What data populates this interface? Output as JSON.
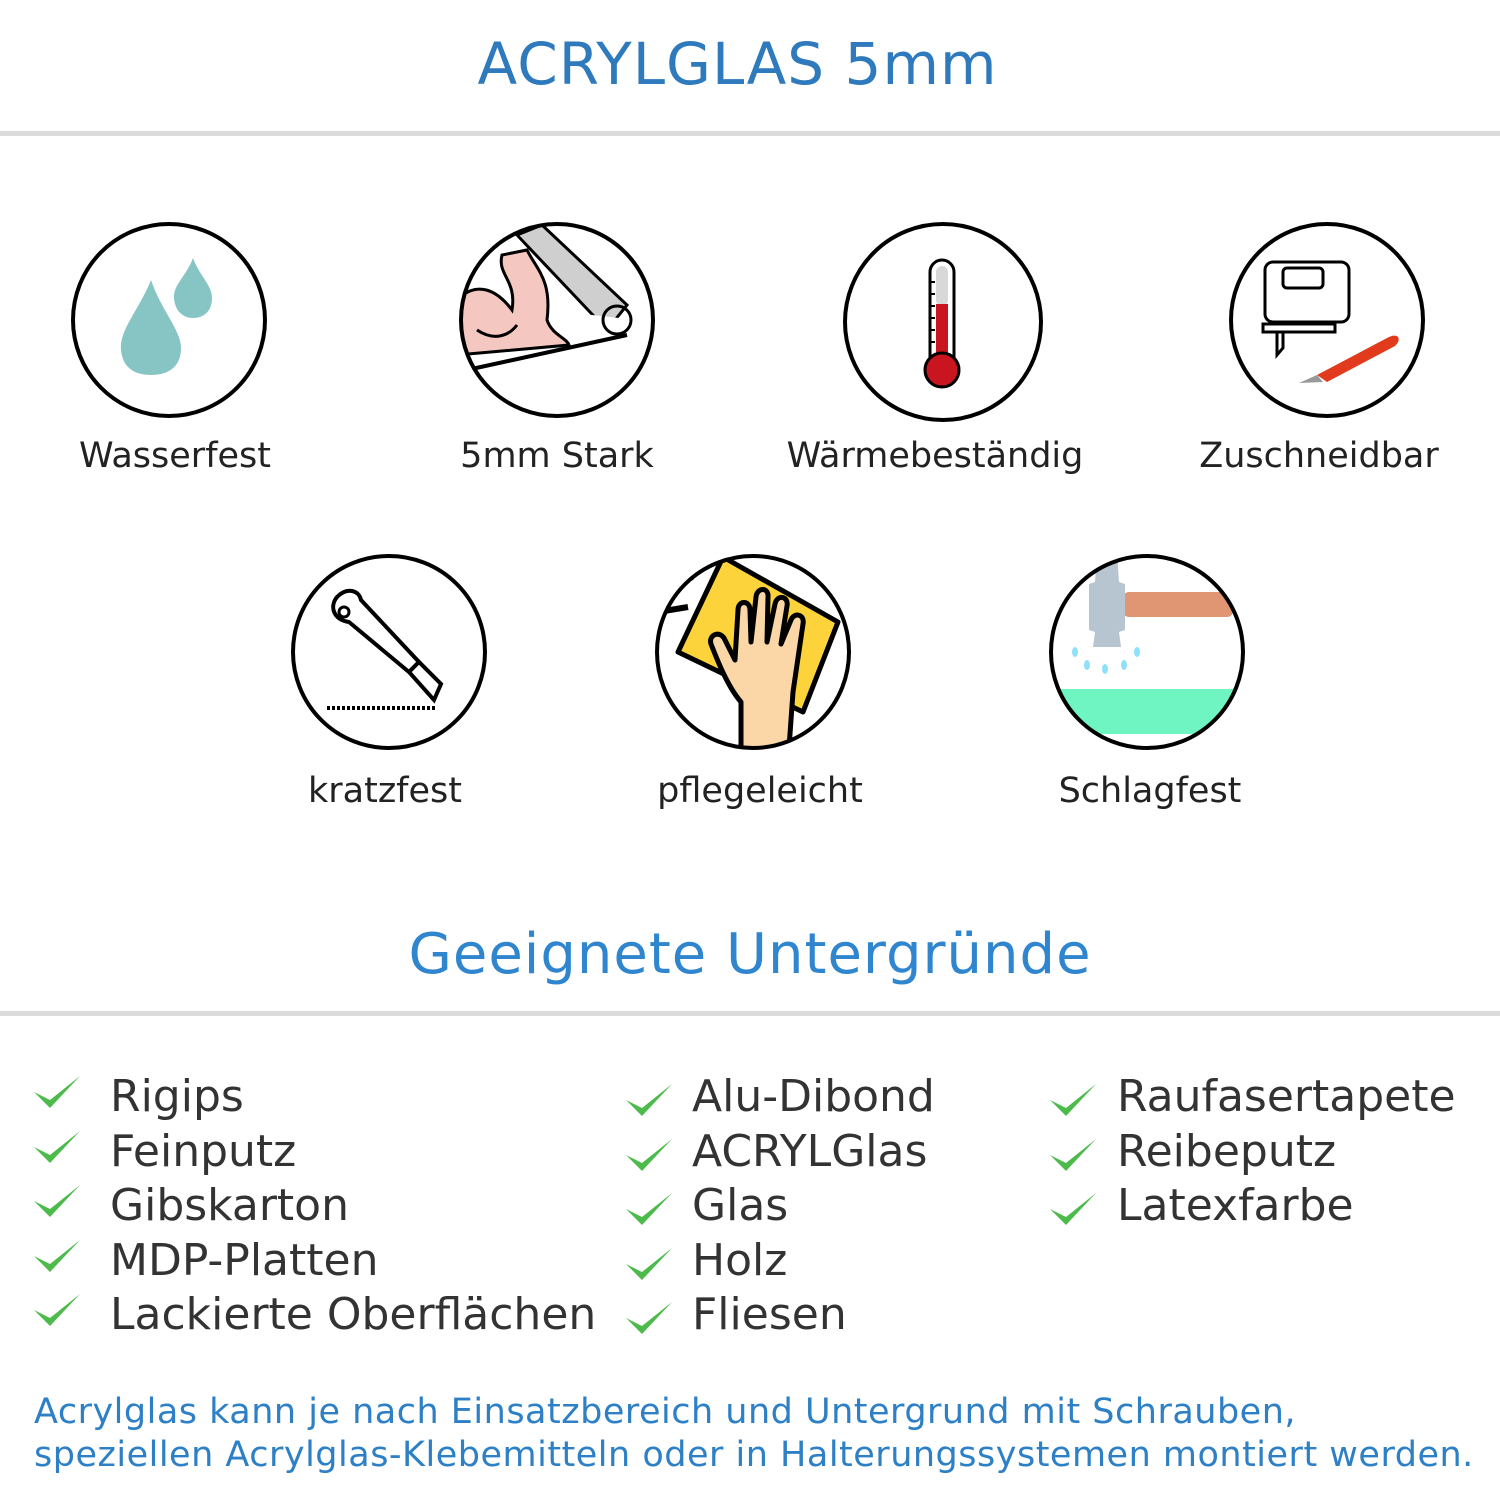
{
  "header": {
    "title": "ACRYLGLAS 5mm"
  },
  "features": [
    {
      "label": "Wasserfest",
      "icon": "water-drops-icon"
    },
    {
      "label": "5mm Stark",
      "icon": "strong-arm-icon"
    },
    {
      "label": "Wärmebeständig",
      "icon": "thermometer-icon"
    },
    {
      "label": "Zuschneidbar",
      "icon": "jigsaw-knife-icon"
    },
    {
      "label": "kratzfest",
      "icon": "cutter-knife-icon"
    },
    {
      "label": "pflegeleicht",
      "icon": "cleaning-hand-icon"
    },
    {
      "label": "Schlagfest",
      "icon": "hammer-icon"
    }
  ],
  "surfaces": {
    "title": "Geeignete Untergründe",
    "check_color": "#4cbb4c",
    "columns": [
      [
        "Rigips",
        "Feinputz",
        "Gibskarton",
        "MDP-Platten",
        "Lackierte Oberflächen"
      ],
      [
        "Alu-Dibond",
        "ACRYLGlas",
        "Glas",
        "Holz",
        "Fliesen"
      ],
      [
        "Raufasertapete",
        "Reibeputz",
        "Latexfarbe"
      ]
    ]
  },
  "footer": {
    "line1": "Acrylglas kann je nach Einsatzbereich und Untergrund mit Schrauben,",
    "line2": "speziellen Acrylglas-Klebemitteln oder in Halterungssystemen montiert werden."
  },
  "colors": {
    "title": "#2f79bd",
    "subtitle": "#2f86cf",
    "footer": "#2e80c6"
  }
}
